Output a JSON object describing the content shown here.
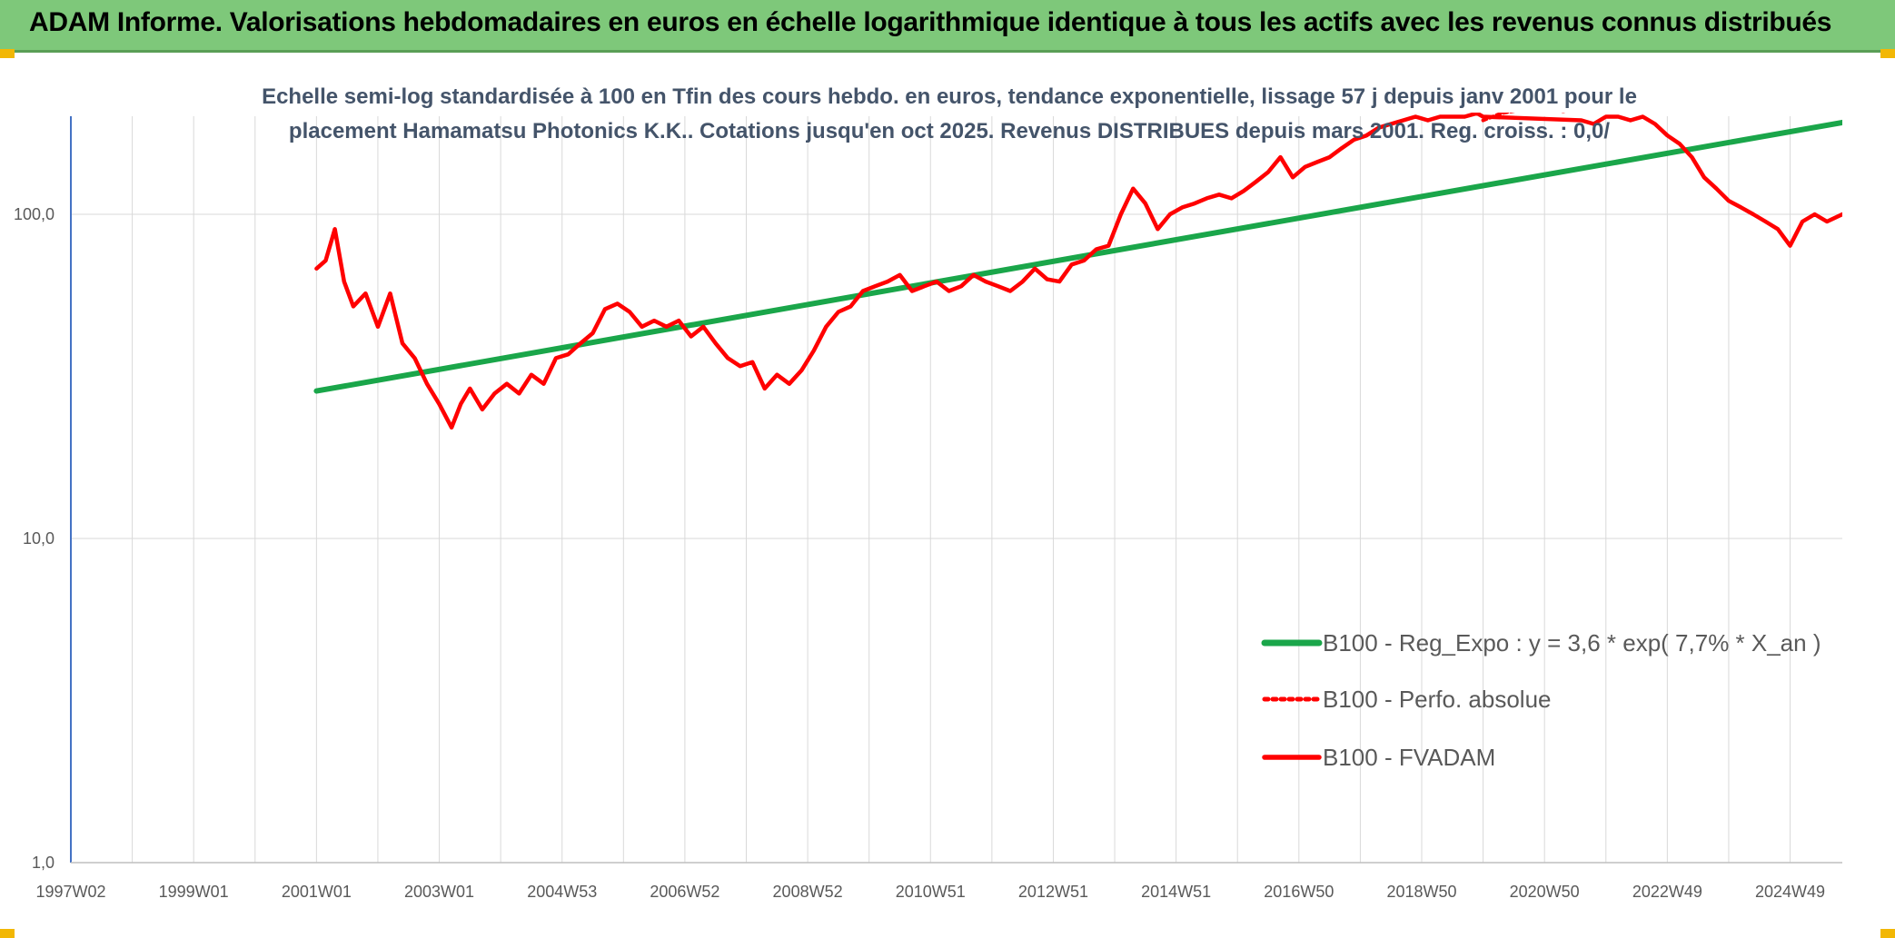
{
  "header": {
    "title": "ADAM Informe. Valorisations hebdomadaires en euros en échelle logarithmique identique à tous les actifs avec les revenus connus distribués"
  },
  "colors": {
    "banner": "#7ec87a",
    "accent_corner": "#f2b705",
    "regression": "#1aa64a",
    "fvadam": "#ff0000",
    "title_text": "#44546a",
    "grid": "#d9d9d9"
  },
  "chart_data": {
    "type": "line",
    "title_line1": "Echelle semi-log standardisée à 100 en Tfin des cours hebdo. en euros, tendance exponentielle, lissage 57 j depuis janv 2001 pour le",
    "title_line2": "placement Hamamatsu Photonics K.K.. Cotations jusqu'en oct 2025. Revenus DISTRIBUES depuis mars 2001. Reg. croiss. : 0,0/",
    "y_scale": "log",
    "ylim": [
      1,
      200
    ],
    "y_tick_labels": [
      "1,0",
      "10,0",
      "100,0"
    ],
    "y_ticks": [
      1,
      10,
      100
    ],
    "xlim": [
      1997.0,
      2025.85
    ],
    "x_tick_labels": [
      "1997W02",
      "1999W01",
      "2001W01",
      "2003W01",
      "2004W53",
      "2006W52",
      "2008W52",
      "2010W51",
      "2012W51",
      "2014W51",
      "2016W50",
      "2018W50",
      "2020W50",
      "2022W49",
      "2024W49"
    ],
    "x_ticks": [
      1997.0,
      1999.0,
      2001.0,
      2003.0,
      2005.0,
      2007.0,
      2009.0,
      2011.0,
      2013.0,
      2015.0,
      2017.0,
      2019.0,
      2021.0,
      2023.0,
      2025.0
    ],
    "grid": true,
    "legend_position": "bottom-right",
    "series": [
      {
        "name": "B100 - Reg_Expo : y = 3,6 * exp( 7,7% *  X_an )",
        "style": "solid-green",
        "x": [
          2001.0,
          2025.85
        ],
        "y": [
          28.5,
          192
        ]
      },
      {
        "name": "B100 - Perfo. absolue",
        "style": "dotted-red",
        "x": [
          2020.0,
          2020.3,
          2020.6,
          2021.0,
          2021.3,
          2021.6
        ],
        "y": [
          195,
          205,
          210,
          215,
          208,
          212
        ]
      },
      {
        "name": "B100 - FVADAM",
        "style": "solid-red",
        "x": [
          2001.0,
          2001.15,
          2001.3,
          2001.45,
          2001.6,
          2001.8,
          2002.0,
          2002.2,
          2002.4,
          2002.6,
          2002.8,
          2003.0,
          2003.2,
          2003.35,
          2003.5,
          2003.7,
          2003.9,
          2004.1,
          2004.3,
          2004.5,
          2004.7,
          2004.9,
          2005.1,
          2005.3,
          2005.5,
          2005.7,
          2005.9,
          2006.1,
          2006.3,
          2006.5,
          2006.7,
          2006.9,
          2007.1,
          2007.3,
          2007.5,
          2007.7,
          2007.9,
          2008.1,
          2008.3,
          2008.5,
          2008.7,
          2008.9,
          2009.1,
          2009.3,
          2009.5,
          2009.7,
          2009.9,
          2010.1,
          2010.3,
          2010.5,
          2010.7,
          2010.9,
          2011.1,
          2011.3,
          2011.5,
          2011.7,
          2011.9,
          2012.1,
          2012.3,
          2012.5,
          2012.7,
          2012.9,
          2013.1,
          2013.3,
          2013.5,
          2013.7,
          2013.9,
          2014.1,
          2014.3,
          2014.5,
          2014.7,
          2014.9,
          2015.1,
          2015.3,
          2015.5,
          2015.7,
          2015.9,
          2016.1,
          2016.3,
          2016.5,
          2016.7,
          2016.9,
          2017.1,
          2017.3,
          2017.5,
          2017.7,
          2017.9,
          2018.1,
          2018.3,
          2018.5,
          2018.7,
          2018.9,
          2019.1,
          2019.3,
          2019.5,
          2019.7,
          2019.9,
          2020.0,
          2021.6,
          2021.8,
          2022.0,
          2022.2,
          2022.4,
          2022.6,
          2022.8,
          2023.0,
          2023.2,
          2023.4,
          2023.6,
          2023.8,
          2024.0,
          2024.2,
          2024.4,
          2024.6,
          2024.8,
          2025.0,
          2025.2,
          2025.4,
          2025.6,
          2025.85
        ],
        "y": [
          68,
          72,
          90,
          62,
          52,
          57,
          45,
          57,
          40,
          36,
          30,
          26,
          22,
          26,
          29,
          25,
          28,
          30,
          28,
          32,
          30,
          36,
          37,
          40,
          43,
          51,
          53,
          50,
          45,
          47,
          45,
          47,
          42,
          45,
          40,
          36,
          34,
          35,
          29,
          32,
          30,
          33,
          38,
          45,
          50,
          52,
          58,
          60,
          62,
          65,
          58,
          60,
          62,
          58,
          60,
          65,
          62,
          60,
          58,
          62,
          68,
          63,
          62,
          70,
          72,
          78,
          80,
          100,
          120,
          108,
          90,
          100,
          105,
          108,
          112,
          115,
          112,
          118,
          126,
          135,
          150,
          130,
          140,
          145,
          150,
          160,
          170,
          175,
          185,
          190,
          195,
          200,
          195,
          200,
          200,
          200,
          205,
          200,
          195,
          190,
          200,
          200,
          195,
          200,
          190,
          175,
          165,
          150,
          130,
          120,
          110,
          105,
          100,
          95,
          90,
          80,
          95,
          100,
          95,
          100
        ]
      }
    ]
  }
}
